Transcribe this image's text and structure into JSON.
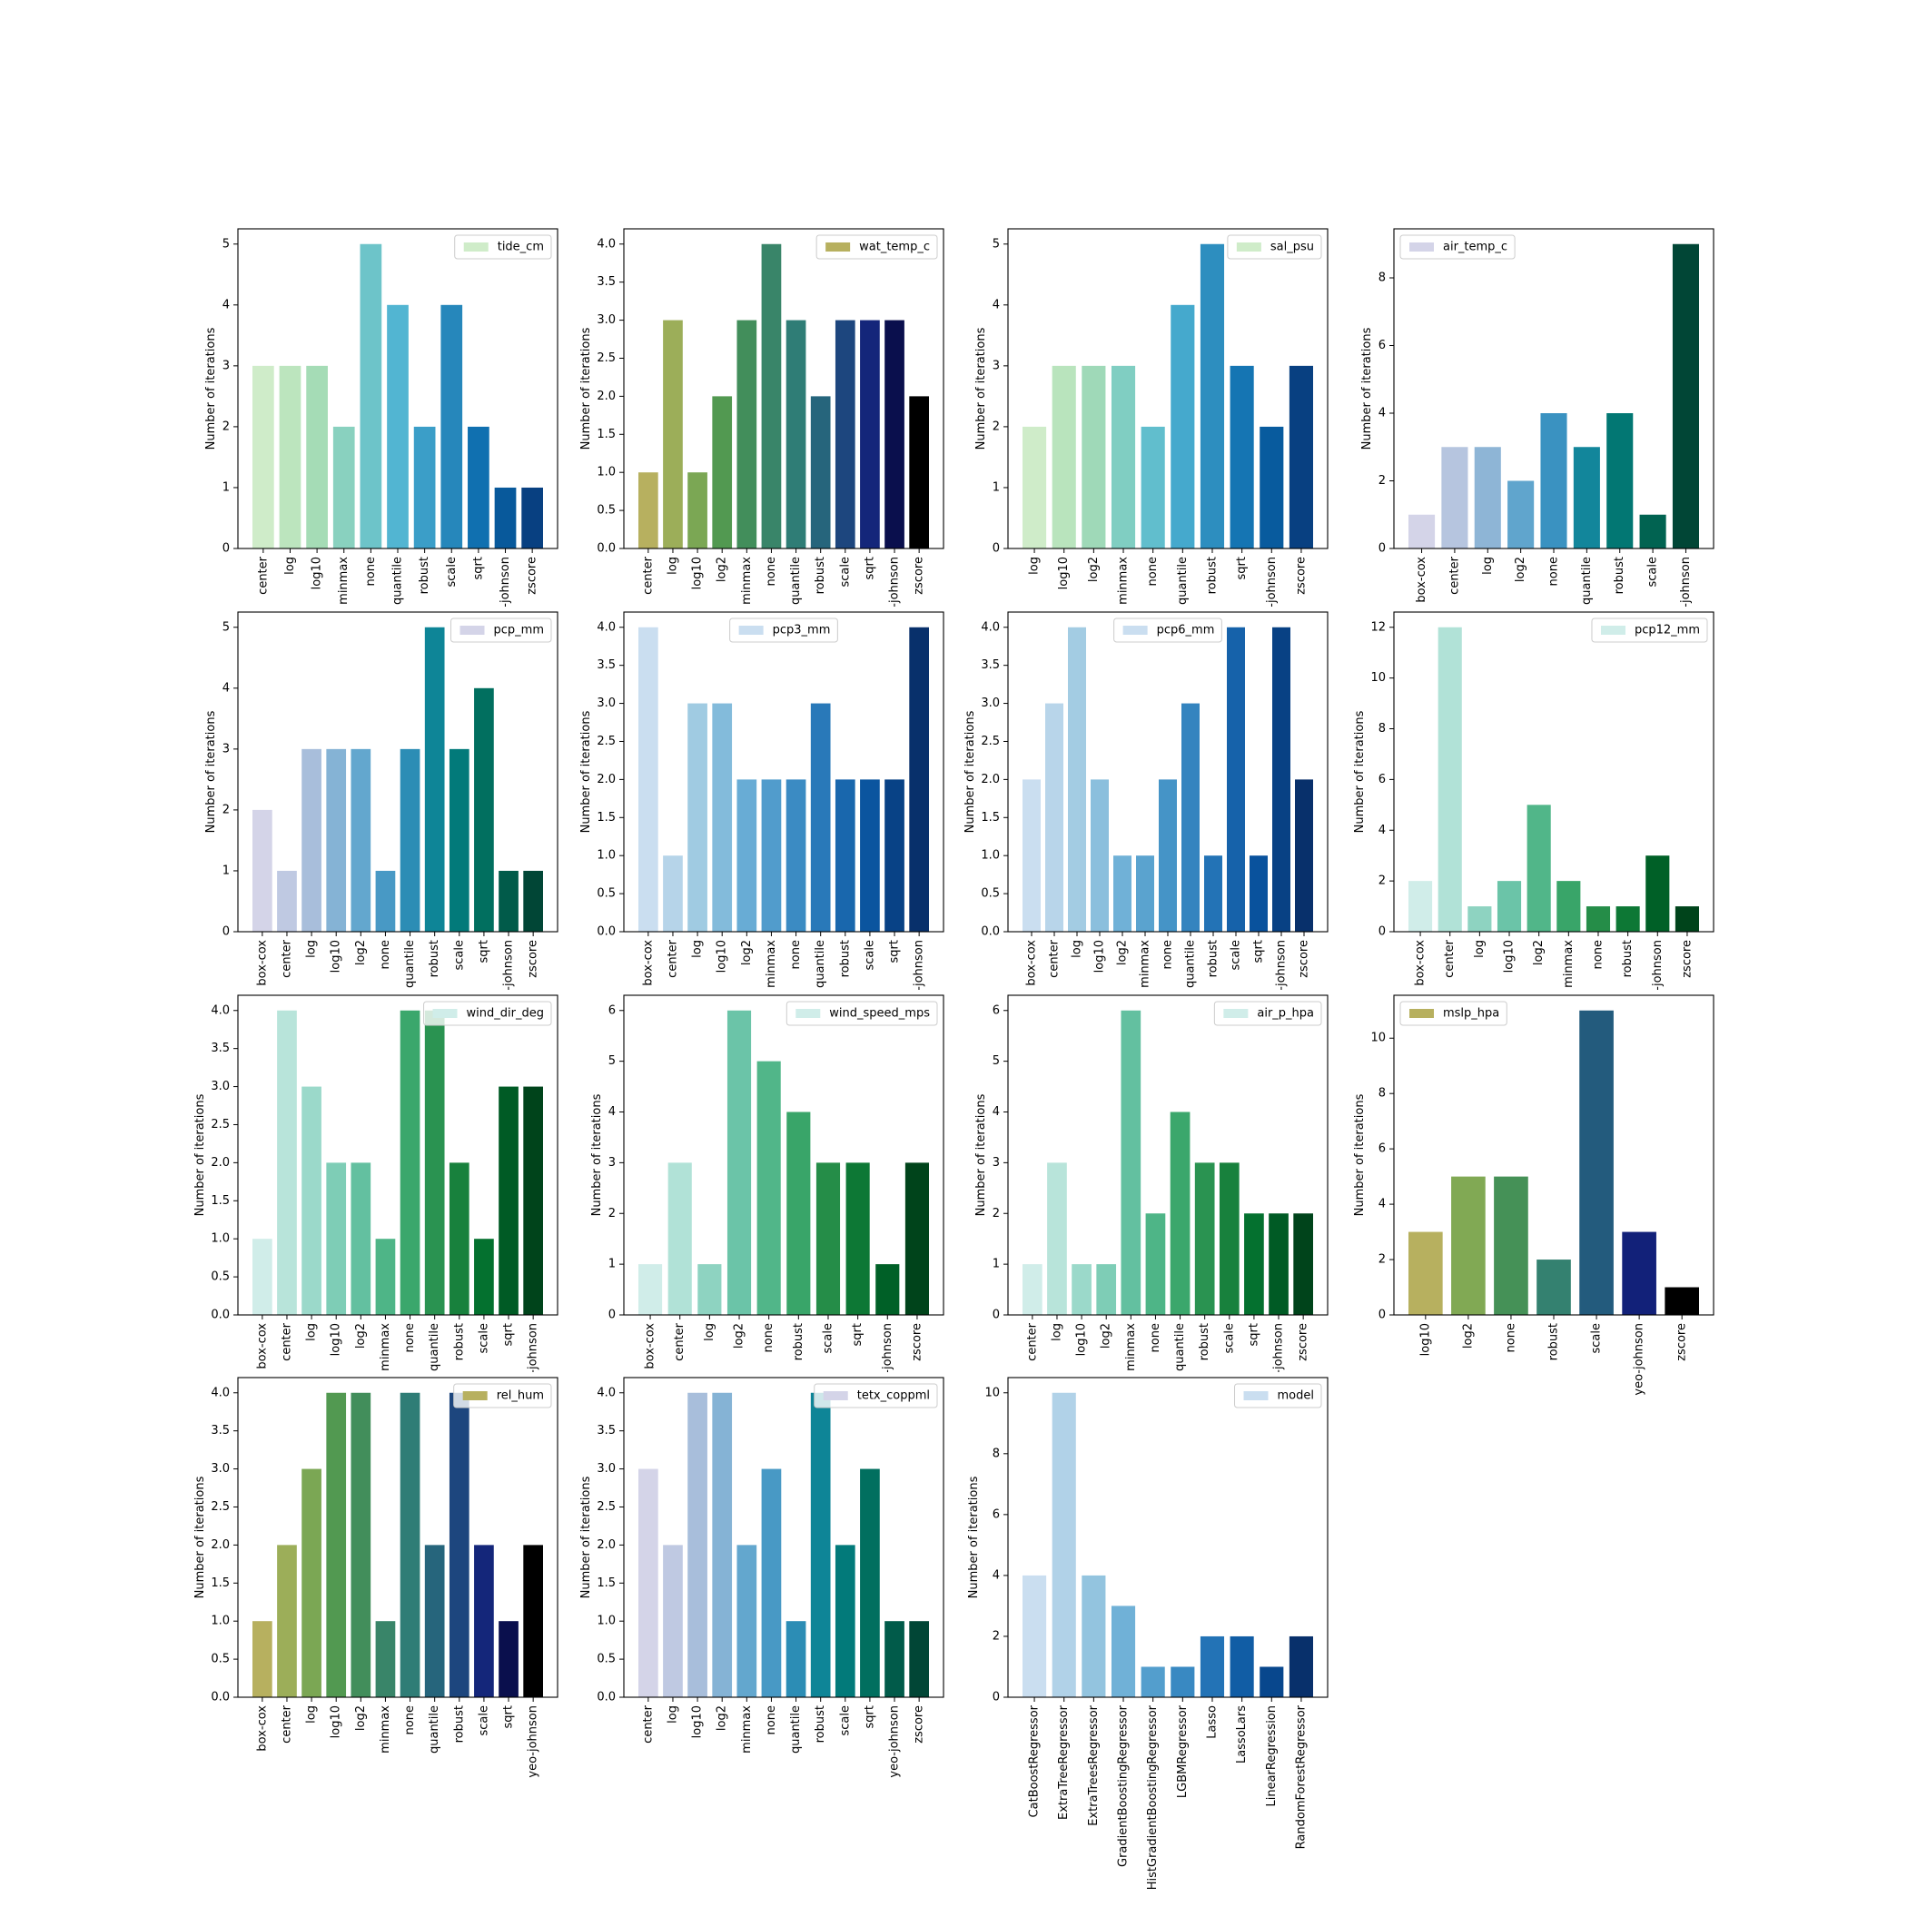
{
  "chart_data": [
    {
      "type": "bar",
      "ylabel": "Number of iterations",
      "legend_loc": "upper right",
      "ylim": [
        0,
        5.25
      ],
      "yticks": [
        0,
        1,
        2,
        3,
        4,
        5
      ],
      "colors": [
        "#e0f3db",
        "#ccebc5",
        "#a8ddb5",
        "#7bccc4",
        "#4eb3d3",
        "#2b8cbe",
        "#0868ac",
        "#084081"
      ],
      "categories": [
        "center",
        "log",
        "log10",
        "minmax",
        "none",
        "quantile",
        "robust",
        "scale",
        "sqrt",
        "yeo-johnson",
        "zscore"
      ],
      "series": [
        {
          "name": "tide_cm",
          "values": [
            3,
            3,
            3,
            2,
            5,
            4,
            2,
            4,
            2,
            1,
            1
          ]
        }
      ]
    },
    {
      "type": "bar",
      "ylabel": "Number of iterations",
      "legend_loc": "upper right",
      "ylim": [
        0,
        4.2
      ],
      "yticks": [
        {
          "value": 0,
          "label": "0.0"
        },
        {
          "value": 0.5,
          "label": "0.5"
        },
        {
          "value": 1,
          "label": "1.0"
        },
        {
          "value": 1.5,
          "label": "1.5"
        },
        {
          "value": 2,
          "label": "2.0"
        },
        {
          "value": 2.5,
          "label": "2.5"
        },
        {
          "value": 3,
          "label": "3.0"
        },
        {
          "value": 3.5,
          "label": "3.5"
        },
        {
          "value": 4,
          "label": "4.0"
        }
      ],
      "colors": [
        "#c6a46e",
        "#b6b05e",
        "#8aac55",
        "#4a9650",
        "#3b8766",
        "#2c7b7a",
        "#1e4a7e",
        "#101878",
        "#000000"
      ],
      "categories": [
        "center",
        "log",
        "log10",
        "log2",
        "minmax",
        "none",
        "quantile",
        "robust",
        "scale",
        "sqrt",
        "yeo-johnson",
        "zscore"
      ],
      "series": [
        {
          "name": "wat_temp_c",
          "values": [
            1,
            3,
            1,
            2,
            3,
            4,
            3,
            2,
            3,
            3,
            3,
            2
          ]
        }
      ]
    },
    {
      "type": "bar",
      "ylabel": "Number of iterations",
      "legend_loc": "upper right",
      "ylim": [
        0,
        5.25
      ],
      "yticks": [
        0,
        1,
        2,
        3,
        4,
        5
      ],
      "colors": [
        "#e0f3db",
        "#ccebc5",
        "#a8ddb5",
        "#7bccc4",
        "#4eb3d3",
        "#2b8cbe",
        "#0868ac",
        "#084081"
      ],
      "categories": [
        "log",
        "log10",
        "log2",
        "minmax",
        "none",
        "quantile",
        "robust",
        "sqrt",
        "yeo-johnson",
        "zscore"
      ],
      "series": [
        {
          "name": "sal_psu",
          "values": [
            2,
            3,
            3,
            3,
            2,
            4,
            5,
            3,
            2,
            3
          ]
        }
      ]
    },
    {
      "type": "bar",
      "ylabel": "Number of iterations",
      "legend_loc": "upper left",
      "ylim": [
        0,
        9.45
      ],
      "yticks": [
        0,
        2,
        4,
        6,
        8
      ],
      "colors": [
        "#ece2f0",
        "#d0d1e6",
        "#a6bddb",
        "#67a9cf",
        "#3690c0",
        "#02818a",
        "#016c59",
        "#014636"
      ],
      "categories": [
        "box-cox",
        "center",
        "log",
        "log2",
        "none",
        "quantile",
        "robust",
        "scale",
        "yeo-johnson"
      ],
      "series": [
        {
          "name": "air_temp_c",
          "values": [
            1,
            3,
            3,
            2,
            4,
            3,
            4,
            1,
            9
          ]
        }
      ]
    },
    {
      "type": "bar",
      "ylabel": "Number of iterations",
      "legend_loc": "upper right",
      "ylim": [
        0,
        5.25
      ],
      "yticks": [
        0,
        1,
        2,
        3,
        4,
        5
      ],
      "colors": [
        "#ece2f0",
        "#d0d1e6",
        "#a6bddb",
        "#67a9cf",
        "#3690c0",
        "#02818a",
        "#016c59",
        "#014636"
      ],
      "categories": [
        "box-cox",
        "center",
        "log",
        "log10",
        "log2",
        "none",
        "quantile",
        "robust",
        "scale",
        "sqrt",
        "yeo-johnson",
        "zscore"
      ],
      "series": [
        {
          "name": "pcp_mm",
          "values": [
            2,
            1,
            3,
            3,
            3,
            1,
            3,
            5,
            3,
            4,
            1,
            1
          ]
        }
      ]
    },
    {
      "type": "bar",
      "ylabel": "Number of iterations",
      "legend_loc": "upper center",
      "ylim": [
        0,
        4.2
      ],
      "yticks": [
        {
          "value": 0,
          "label": "0.0"
        },
        {
          "value": 0.5,
          "label": "0.5"
        },
        {
          "value": 1,
          "label": "1.0"
        },
        {
          "value": 1.5,
          "label": "1.5"
        },
        {
          "value": 2,
          "label": "2.0"
        },
        {
          "value": 2.5,
          "label": "2.5"
        },
        {
          "value": 3,
          "label": "3.0"
        },
        {
          "value": 3.5,
          "label": "3.5"
        },
        {
          "value": 4,
          "label": "4.0"
        }
      ],
      "colors": [
        "#deebf7",
        "#c6dbef",
        "#9ecae1",
        "#6baed6",
        "#4292c6",
        "#2171b5",
        "#08519c",
        "#08306b"
      ],
      "categories": [
        "box-cox",
        "center",
        "log",
        "log10",
        "log2",
        "minmax",
        "none",
        "quantile",
        "robust",
        "scale",
        "sqrt",
        "yeo-johnson"
      ],
      "series": [
        {
          "name": "pcp3_mm",
          "values": [
            4,
            1,
            3,
            3,
            2,
            2,
            2,
            3,
            2,
            2,
            2,
            4
          ]
        }
      ]
    },
    {
      "type": "bar",
      "ylabel": "Number of iterations",
      "legend_loc": "upper center",
      "ylim": [
        0,
        4.2
      ],
      "yticks": [
        {
          "value": 0,
          "label": "0.0"
        },
        {
          "value": 0.5,
          "label": "0.5"
        },
        {
          "value": 1,
          "label": "1.0"
        },
        {
          "value": 1.5,
          "label": "1.5"
        },
        {
          "value": 2,
          "label": "2.0"
        },
        {
          "value": 2.5,
          "label": "2.5"
        },
        {
          "value": 3,
          "label": "3.0"
        },
        {
          "value": 3.5,
          "label": "3.5"
        },
        {
          "value": 4,
          "label": "4.0"
        }
      ],
      "colors": [
        "#deebf7",
        "#c6dbef",
        "#9ecae1",
        "#6baed6",
        "#4292c6",
        "#2171b5",
        "#08519c",
        "#08306b"
      ],
      "categories": [
        "box-cox",
        "center",
        "log",
        "log10",
        "log2",
        "minmax",
        "none",
        "quantile",
        "robust",
        "scale",
        "sqrt",
        "yeo-johnson",
        "zscore"
      ],
      "series": [
        {
          "name": "pcp6_mm",
          "values": [
            2,
            3,
            4,
            2,
            1,
            1,
            2,
            3,
            1,
            4,
            1,
            4,
            2
          ]
        }
      ]
    },
    {
      "type": "bar",
      "ylabel": "Number of iterations",
      "legend_loc": "upper right",
      "ylim": [
        0,
        12.6
      ],
      "yticks": [
        0,
        2,
        4,
        6,
        8,
        10,
        12
      ],
      "colors": [
        "#e5f5f9",
        "#ccece6",
        "#99d8c9",
        "#66c2a4",
        "#41ae76",
        "#238b45",
        "#006d2c",
        "#00441b"
      ],
      "categories": [
        "box-cox",
        "center",
        "log",
        "log10",
        "log2",
        "minmax",
        "none",
        "robust",
        "yeo-johnson",
        "zscore"
      ],
      "series": [
        {
          "name": "pcp12_mm",
          "values": [
            2,
            12,
            1,
            2,
            5,
            2,
            1,
            1,
            3,
            1
          ]
        }
      ]
    },
    {
      "type": "bar",
      "ylabel": "Number of iterations",
      "legend_loc": "upper right",
      "ylim": [
        0,
        4.2
      ],
      "yticks": [
        {
          "value": 0,
          "label": "0.0"
        },
        {
          "value": 0.5,
          "label": "0.5"
        },
        {
          "value": 1,
          "label": "1.0"
        },
        {
          "value": 1.5,
          "label": "1.5"
        },
        {
          "value": 2,
          "label": "2.0"
        },
        {
          "value": 2.5,
          "label": "2.5"
        },
        {
          "value": 3,
          "label": "3.0"
        },
        {
          "value": 3.5,
          "label": "3.5"
        },
        {
          "value": 4,
          "label": "4.0"
        }
      ],
      "colors": [
        "#e5f5f9",
        "#ccece6",
        "#99d8c9",
        "#66c2a4",
        "#41ae76",
        "#238b45",
        "#006d2c",
        "#00441b"
      ],
      "categories": [
        "box-cox",
        "center",
        "log",
        "log10",
        "log2",
        "minmax",
        "none",
        "quantile",
        "robust",
        "scale",
        "sqrt",
        "yeo-johnson"
      ],
      "series": [
        {
          "name": "wind_dir_deg",
          "values": [
            1,
            4,
            3,
            2,
            2,
            1,
            4,
            4,
            2,
            1,
            3,
            3
          ]
        }
      ]
    },
    {
      "type": "bar",
      "ylabel": "Number of iterations",
      "legend_loc": "upper right",
      "ylim": [
        0,
        6.3
      ],
      "yticks": [
        0,
        1,
        2,
        3,
        4,
        5,
        6
      ],
      "colors": [
        "#e5f5f9",
        "#ccece6",
        "#99d8c9",
        "#66c2a4",
        "#41ae76",
        "#238b45",
        "#006d2c",
        "#00441b"
      ],
      "categories": [
        "box-cox",
        "center",
        "log",
        "log2",
        "none",
        "robust",
        "scale",
        "sqrt",
        "yeo-johnson",
        "zscore"
      ],
      "series": [
        {
          "name": "wind_speed_mps",
          "values": [
            1,
            3,
            1,
            6,
            5,
            4,
            3,
            3,
            1,
            3
          ]
        }
      ]
    },
    {
      "type": "bar",
      "ylabel": "Number of iterations",
      "legend_loc": "upper right",
      "ylim": [
        0,
        6.3
      ],
      "yticks": [
        0,
        1,
        2,
        3,
        4,
        5,
        6
      ],
      "colors": [
        "#e5f5f9",
        "#ccece6",
        "#99d8c9",
        "#66c2a4",
        "#41ae76",
        "#238b45",
        "#006d2c",
        "#00441b"
      ],
      "categories": [
        "center",
        "log",
        "log10",
        "log2",
        "minmax",
        "none",
        "quantile",
        "robust",
        "scale",
        "sqrt",
        "yeo-johnson",
        "zscore"
      ],
      "series": [
        {
          "name": "air_p_hpa",
          "values": [
            1,
            3,
            1,
            1,
            6,
            2,
            4,
            3,
            3,
            2,
            2,
            2
          ]
        }
      ]
    },
    {
      "type": "bar",
      "ylabel": "Number of iterations",
      "legend_loc": "upper left",
      "ylim": [
        0,
        11.55
      ],
      "yticks": [
        0,
        2,
        4,
        6,
        8,
        10
      ],
      "colors": [
        "#c6a46e",
        "#b6b05e",
        "#8aac55",
        "#4a9650",
        "#3b8766",
        "#2c7b7a",
        "#1e4a7e",
        "#101878",
        "#000000"
      ],
      "categories": [
        "log10",
        "log2",
        "none",
        "robust",
        "scale",
        "yeo-johnson",
        "zscore"
      ],
      "series": [
        {
          "name": "mslp_hpa",
          "values": [
            3,
            5,
            5,
            2,
            11,
            3,
            1
          ]
        }
      ]
    },
    {
      "type": "bar",
      "ylabel": "Number of iterations",
      "legend_loc": "upper right",
      "ylim": [
        0,
        4.2
      ],
      "yticks": [
        {
          "value": 0,
          "label": "0.0"
        },
        {
          "value": 0.5,
          "label": "0.5"
        },
        {
          "value": 1,
          "label": "1.0"
        },
        {
          "value": 1.5,
          "label": "1.5"
        },
        {
          "value": 2,
          "label": "2.0"
        },
        {
          "value": 2.5,
          "label": "2.5"
        },
        {
          "value": 3,
          "label": "3.0"
        },
        {
          "value": 3.5,
          "label": "3.5"
        },
        {
          "value": 4,
          "label": "4.0"
        }
      ],
      "colors": [
        "#c6a46e",
        "#b6b05e",
        "#8aac55",
        "#4a9650",
        "#3b8766",
        "#2c7b7a",
        "#1e4a7e",
        "#101878",
        "#000000"
      ],
      "categories": [
        "box-cox",
        "center",
        "log",
        "log10",
        "log2",
        "minmax",
        "none",
        "quantile",
        "robust",
        "scale",
        "sqrt",
        "yeo-johnson"
      ],
      "series": [
        {
          "name": "rel_hum",
          "values": [
            1,
            2,
            3,
            4,
            4,
            1,
            4,
            2,
            4,
            2,
            1,
            2
          ]
        }
      ]
    },
    {
      "type": "bar",
      "ylabel": "Number of iterations",
      "legend_loc": "upper right",
      "ylim": [
        0,
        4.2
      ],
      "yticks": [
        {
          "value": 0,
          "label": "0.0"
        },
        {
          "value": 0.5,
          "label": "0.5"
        },
        {
          "value": 1,
          "label": "1.0"
        },
        {
          "value": 1.5,
          "label": "1.5"
        },
        {
          "value": 2,
          "label": "2.0"
        },
        {
          "value": 2.5,
          "label": "2.5"
        },
        {
          "value": 3,
          "label": "3.0"
        },
        {
          "value": 3.5,
          "label": "3.5"
        },
        {
          "value": 4,
          "label": "4.0"
        }
      ],
      "colors": [
        "#ece2f0",
        "#d0d1e6",
        "#a6bddb",
        "#67a9cf",
        "#3690c0",
        "#02818a",
        "#016c59",
        "#014636"
      ],
      "categories": [
        "center",
        "log",
        "log10",
        "log2",
        "minmax",
        "none",
        "quantile",
        "robust",
        "scale",
        "sqrt",
        "yeo-johnson",
        "zscore"
      ],
      "series": [
        {
          "name": "tetx_coppml",
          "values": [
            3,
            2,
            4,
            4,
            2,
            3,
            1,
            4,
            2,
            3,
            1,
            1
          ]
        }
      ]
    },
    {
      "type": "bar",
      "ylabel": "Number of iterations",
      "legend_loc": "upper right",
      "ylim": [
        0,
        10.5
      ],
      "yticks": [
        0,
        2,
        4,
        6,
        8,
        10
      ],
      "colors": [
        "#deebf7",
        "#c6dbef",
        "#9ecae1",
        "#6baed6",
        "#4292c6",
        "#2171b5",
        "#08519c",
        "#08306b"
      ],
      "categories": [
        "CatBoostRegressor",
        "ExtraTreeRegressor",
        "ExtraTreesRegressor",
        "GradientBoostingRegressor",
        "HistGradientBoostingRegressor",
        "LGBMRegressor",
        "Lasso",
        "LassoLars",
        "LinearRegression",
        "RandomForestRegressor"
      ],
      "series": [
        {
          "name": "model",
          "values": [
            4,
            10,
            4,
            3,
            1,
            1,
            2,
            2,
            1,
            2
          ]
        }
      ]
    }
  ]
}
